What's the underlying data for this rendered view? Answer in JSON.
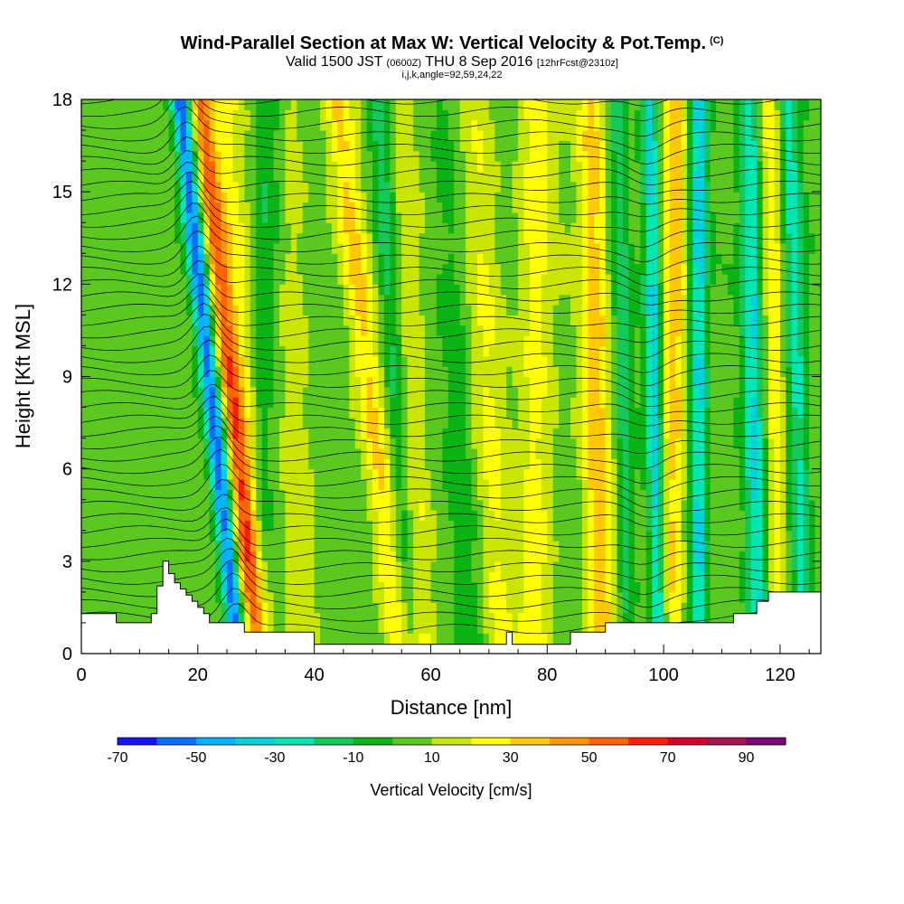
{
  "header": {
    "title": "Wind-Parallel Section at Max W: Vertical Velocity & Pot.Temp.",
    "copyright": "(C)",
    "valid_prefix": "Valid 1500 JST",
    "valid_utc": "(0600Z)",
    "valid_date": "THU 8 Sep 2016",
    "forecast": "[12hrFcst@2310z]",
    "indices": "i,j,k,angle=92,59,24,22"
  },
  "chart_data": {
    "type": "heatmap",
    "xlabel": "Distance [nm]",
    "ylabel": "Height [Kft MSL]",
    "xlim": [
      0,
      127
    ],
    "ylim": [
      0,
      18
    ],
    "x_ticks": [
      "0",
      "20",
      "40",
      "60",
      "80",
      "100",
      "120"
    ],
    "y_ticks": [
      "0",
      "3",
      "6",
      "9",
      "12",
      "15",
      "18"
    ],
    "colorbar": {
      "label": "Vertical Velocity [cm/s]",
      "tick_labels": [
        "-70",
        "-50",
        "-30",
        "-10",
        "10",
        "30",
        "50",
        "70",
        "90"
      ],
      "levels": [
        -70,
        -60,
        -50,
        -40,
        -30,
        -20,
        -10,
        0,
        10,
        20,
        30,
        40,
        50,
        60,
        70,
        80,
        90
      ],
      "colors": [
        "#1414ff",
        "#0a6eff",
        "#00b4ff",
        "#00d2dc",
        "#00e6b4",
        "#14c85a",
        "#0ab414",
        "#5ac81e",
        "#c8e600",
        "#ffff00",
        "#ffc800",
        "#ff9600",
        "#ff6400",
        "#ff1e00",
        "#d2002d",
        "#a01450",
        "#780a78"
      ]
    },
    "terrain": [
      [
        0,
        1.3
      ],
      [
        6,
        1.3
      ],
      [
        6,
        1.0
      ],
      [
        12,
        1.0
      ],
      [
        12,
        1.3
      ],
      [
        13,
        1.3
      ],
      [
        13,
        2.2
      ],
      [
        14,
        2.2
      ],
      [
        14,
        3.0
      ],
      [
        15,
        3.0
      ],
      [
        15,
        2.6
      ],
      [
        16,
        2.6
      ],
      [
        16,
        2.3
      ],
      [
        17,
        2.3
      ],
      [
        17,
        2.1
      ],
      [
        18,
        2.1
      ],
      [
        18,
        1.9
      ],
      [
        19,
        1.9
      ],
      [
        19,
        1.7
      ],
      [
        20,
        1.7
      ],
      [
        20,
        1.5
      ],
      [
        21,
        1.5
      ],
      [
        21,
        1.3
      ],
      [
        22,
        1.3
      ],
      [
        22,
        1.0
      ],
      [
        28,
        1.0
      ],
      [
        28,
        0.7
      ],
      [
        40,
        0.7
      ],
      [
        40,
        0.3
      ],
      [
        73,
        0.3
      ],
      [
        73,
        0.7
      ],
      [
        74,
        0.7
      ],
      [
        74,
        0.3
      ],
      [
        84,
        0.3
      ],
      [
        84,
        0.7
      ],
      [
        90,
        0.7
      ],
      [
        90,
        1.0
      ],
      [
        112,
        1.0
      ],
      [
        112,
        1.3
      ],
      [
        116,
        1.3
      ],
      [
        116,
        1.7
      ],
      [
        118,
        1.7
      ],
      [
        118,
        2.0
      ],
      [
        127,
        2.0
      ]
    ],
    "bands": [
      {
        "x": 17.0,
        "slope": 0.55,
        "width": 1.6,
        "amp": -60
      },
      {
        "x": 20.5,
        "slope": 0.55,
        "width": 2.0,
        "amp": 50
      },
      {
        "x": 25.0,
        "slope": 0.3,
        "width": 2.5,
        "amp": 15
      },
      {
        "x": 32.0,
        "slope": -0.1,
        "width": 2.0,
        "amp": -15
      },
      {
        "x": 36.0,
        "slope": 0.1,
        "width": 2.5,
        "amp": 10
      },
      {
        "x": 44.0,
        "slope": 0.6,
        "width": 2.5,
        "amp": 25
      },
      {
        "x": 51.0,
        "slope": 0.3,
        "width": 2.0,
        "amp": -20
      },
      {
        "x": 55.0,
        "slope": 0.2,
        "width": 2.5,
        "amp": 15
      },
      {
        "x": 62.0,
        "slope": 0.3,
        "width": 2.5,
        "amp": -10
      },
      {
        "x": 68.0,
        "slope": 0.2,
        "width": 3.0,
        "amp": 15
      },
      {
        "x": 78.0,
        "slope": 0.0,
        "width": 3.0,
        "amp": 20
      },
      {
        "x": 87.5,
        "slope": 0.1,
        "width": 2.5,
        "amp": 30
      },
      {
        "x": 92.0,
        "slope": 0.1,
        "width": 1.5,
        "amp": -20
      },
      {
        "x": 97.5,
        "slope": 0.1,
        "width": 1.5,
        "amp": -40
      },
      {
        "x": 102.0,
        "slope": -0.05,
        "width": 2.0,
        "amp": 30
      },
      {
        "x": 106.0,
        "slope": 0.0,
        "width": 1.5,
        "amp": -40
      },
      {
        "x": 114.5,
        "slope": 0.1,
        "width": 1.8,
        "amp": -35
      },
      {
        "x": 118.0,
        "slope": 0.1,
        "width": 1.8,
        "amp": 20
      },
      {
        "x": 121.5,
        "slope": 0.15,
        "width": 1.8,
        "amp": -30
      }
    ]
  }
}
